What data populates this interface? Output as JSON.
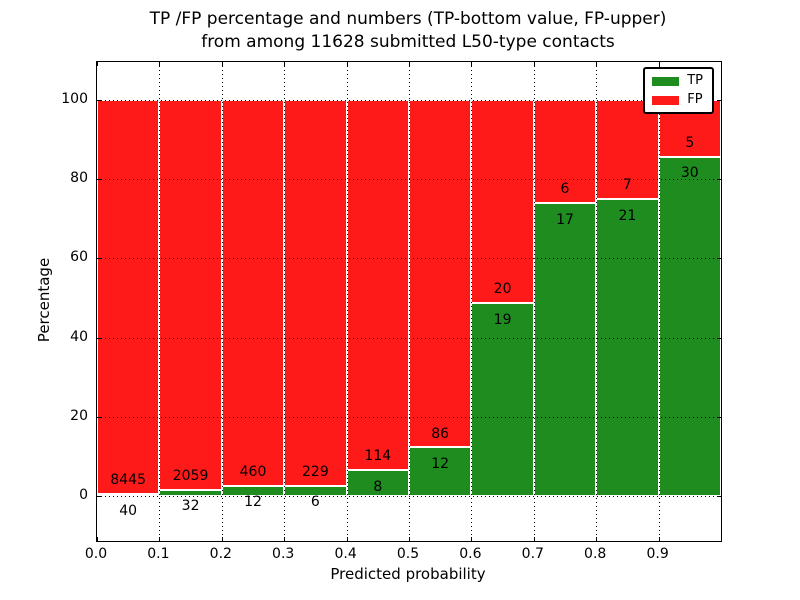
{
  "title": {
    "line1": "TP /FP percentage and numbers (TP-bottom value, FP-upper)",
    "line2": "from among 11628 submitted L50-type contacts"
  },
  "axes": {
    "x_label": "Predicted probability",
    "y_label": "Percentage",
    "x_ticks": [
      "0.0",
      "0.1",
      "0.2",
      "0.3",
      "0.4",
      "0.5",
      "0.6",
      "0.7",
      "0.8",
      "0.9"
    ],
    "y_ticks": [
      "0",
      "20",
      "40",
      "60",
      "80",
      "100"
    ]
  },
  "legend": {
    "items": [
      {
        "label": "TP",
        "color": "#1e8c1e"
      },
      {
        "label": "FP",
        "color": "#ff1a1a"
      }
    ]
  },
  "chart_data": {
    "type": "bar",
    "stacked": true,
    "normalized": "each bin scaled to 100%",
    "title": "TP /FP percentage and numbers (TP-bottom value, FP-upper) from among 11628 submitted L50-type contacts",
    "xlabel": "Predicted probability",
    "ylabel": "Percentage",
    "bin_edges": [
      0.0,
      0.1,
      0.2,
      0.3,
      0.4,
      0.5,
      0.6,
      0.7,
      0.8,
      0.9,
      1.0
    ],
    "categories": [
      "0.0-0.1",
      "0.1-0.2",
      "0.2-0.3",
      "0.3-0.4",
      "0.4-0.5",
      "0.5-0.6",
      "0.6-0.7",
      "0.7-0.8",
      "0.8-0.9",
      "0.9-1.0"
    ],
    "series": [
      {
        "name": "TP",
        "color": "#1e8c1e",
        "counts": [
          40,
          32,
          12,
          6,
          8,
          12,
          19,
          17,
          21,
          30
        ]
      },
      {
        "name": "FP",
        "color": "#ff1a1a",
        "counts": [
          8445,
          2059,
          460,
          229,
          114,
          86,
          20,
          6,
          7,
          5
        ]
      }
    ],
    "tp_percent_shown": [
      0.47,
      1.53,
      2.54,
      2.55,
      6.56,
      12.24,
      48.72,
      73.91,
      75.0,
      85.71
    ],
    "total_contacts": 11628,
    "xlim": [
      0,
      1
    ],
    "ylim": [
      -11.4,
      109.6
    ],
    "grid": "dotted, drawn over bars",
    "legend_position": "upper right"
  }
}
